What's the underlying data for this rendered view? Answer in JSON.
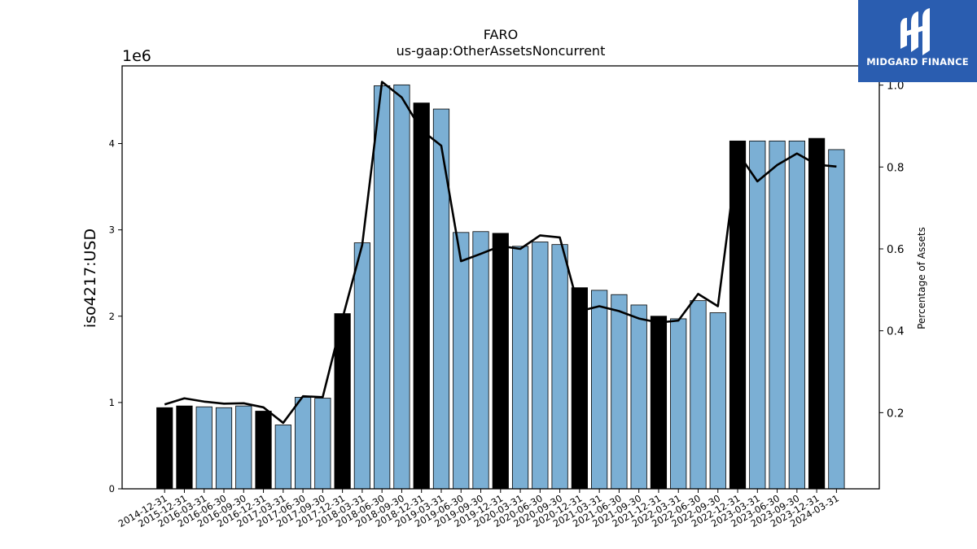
{
  "chart_data": {
    "type": "bar",
    "title": "FARO",
    "subtitle": "us-gaap:OtherAssetsNoncurrent",
    "ylabel": "iso4217:USD",
    "y_offset_label": "1e6",
    "y2label": "Percentage of Assets",
    "ylim": [
      0,
      4900000
    ],
    "y2lim": [
      0.014,
      1.047
    ],
    "y_ticks": [
      0,
      1000000,
      2000000,
      3000000,
      4000000
    ],
    "y_tick_labels": [
      "0",
      "1",
      "2",
      "3",
      "4"
    ],
    "y2_ticks": [
      0.2,
      0.4,
      0.6,
      0.8,
      1.0
    ],
    "y2_tick_labels": [
      "0.2",
      "0.4",
      "0.6",
      "0.8",
      "1.0"
    ],
    "grid": false,
    "categories": [
      "2014-12-31",
      "2015-12-31",
      "2016-03-31",
      "2016-06-30",
      "2016-09-30",
      "2016-12-31",
      "2017-03-31",
      "2017-06-30",
      "2017-09-30",
      "2017-12-31",
      "2018-03-31",
      "2018-06-30",
      "2018-09-30",
      "2018-12-31",
      "2019-03-31",
      "2019-06-30",
      "2019-09-30",
      "2019-12-31",
      "2020-03-31",
      "2020-06-30",
      "2020-09-30",
      "2020-12-31",
      "2021-03-31",
      "2021-06-30",
      "2021-09-30",
      "2021-12-31",
      "2022-03-31",
      "2022-06-30",
      "2022-09-30",
      "2022-12-31",
      "2023-03-31",
      "2023-06-30",
      "2023-09-30",
      "2023-12-31",
      "2024-03-31"
    ],
    "series": [
      {
        "kind": "bar",
        "values": [
          940000,
          960000,
          950000,
          940000,
          960000,
          900000,
          740000,
          1060000,
          1050000,
          2030000,
          2850000,
          4670000,
          4680000,
          4470000,
          4400000,
          2970000,
          2980000,
          2960000,
          2810000,
          2860000,
          2830000,
          2330000,
          2300000,
          2250000,
          2130000,
          2000000,
          1970000,
          2180000,
          2040000,
          4030000,
          4030000,
          4030000,
          4030000,
          4060000,
          3930000
        ],
        "annual": [
          true,
          true,
          false,
          false,
          false,
          true,
          false,
          false,
          false,
          true,
          false,
          false,
          false,
          true,
          false,
          false,
          false,
          true,
          false,
          false,
          false,
          true,
          false,
          false,
          false,
          true,
          false,
          false,
          false,
          true,
          false,
          false,
          false,
          true,
          false
        ]
      },
      {
        "kind": "line",
        "axis": "right",
        "values": [
          0.22,
          0.235,
          0.227,
          0.222,
          0.223,
          0.213,
          0.175,
          0.24,
          0.238,
          0.43,
          0.61,
          1.008,
          0.97,
          0.89,
          0.852,
          0.57,
          0.588,
          0.607,
          0.6,
          0.633,
          0.628,
          0.448,
          0.46,
          0.448,
          0.43,
          0.42,
          0.425,
          0.49,
          0.46,
          0.835,
          0.765,
          0.805,
          0.833,
          0.806,
          0.801
        ]
      }
    ],
    "colors": {
      "annual_bar": "#000000",
      "quarter_bar": "#7bafd4",
      "line": "#000000"
    }
  },
  "brand": {
    "name": "MIDGARD FINANCE",
    "background": "#2a5db0"
  }
}
